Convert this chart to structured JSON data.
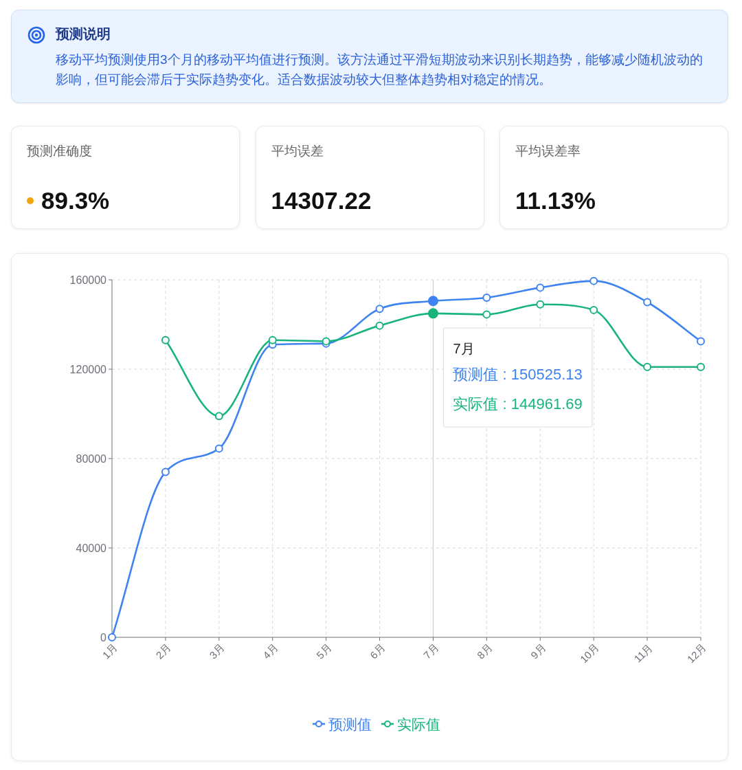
{
  "chart_data": [
    {
      "type": "other",
      "title": "预测说明",
      "annotations": [
        "移动平均预测使用3个月的移动平均值进行预测。该方法通过平滑短期波动来识别长期趋势，能够减少随机波动的影响，但可能会滞后于实际趋势变化。适合数据波动较大但整体趋势相对稳定的情况。"
      ]
    },
    {
      "type": "other",
      "title": "预测准确度",
      "annotations": [
        "89.3%"
      ]
    },
    {
      "type": "other",
      "title": "平均误差",
      "annotations": [
        "14307.22"
      ]
    },
    {
      "type": "other",
      "title": "平均误差率",
      "annotations": [
        "11.13%"
      ]
    },
    {
      "type": "line",
      "categories": [
        "1月",
        "2月",
        "3月",
        "4月",
        "5月",
        "6月",
        "7月",
        "8月",
        "9月",
        "10月",
        "11月",
        "12月"
      ],
      "series": [
        {
          "name": "预测值",
          "color": "#3f83f0",
          "values": [
            0,
            74000,
            84500,
            131000,
            131500,
            147000,
            150525.13,
            152000,
            156500,
            159500,
            150000,
            132500
          ]
        },
        {
          "name": "实际值",
          "color": "#18b47b",
          "values": [
            null,
            133000,
            99000,
            133000,
            132500,
            139500,
            144961.69,
            144500,
            149000,
            146500,
            121000,
            121000
          ]
        }
      ],
      "ylim": [
        0,
        160000
      ],
      "yticks": [
        0,
        40000,
        80000,
        120000,
        160000
      ],
      "grid": true,
      "legend": "bottom",
      "marker": "circle",
      "line_style": "solid",
      "ref_lines": [
        {
          "axis": "x",
          "value": "7月",
          "color": "#cccccc"
        }
      ],
      "annotations": [
        "7月",
        "预测值 : 150525.13",
        "实际值 : 144961.69"
      ]
    }
  ]
}
